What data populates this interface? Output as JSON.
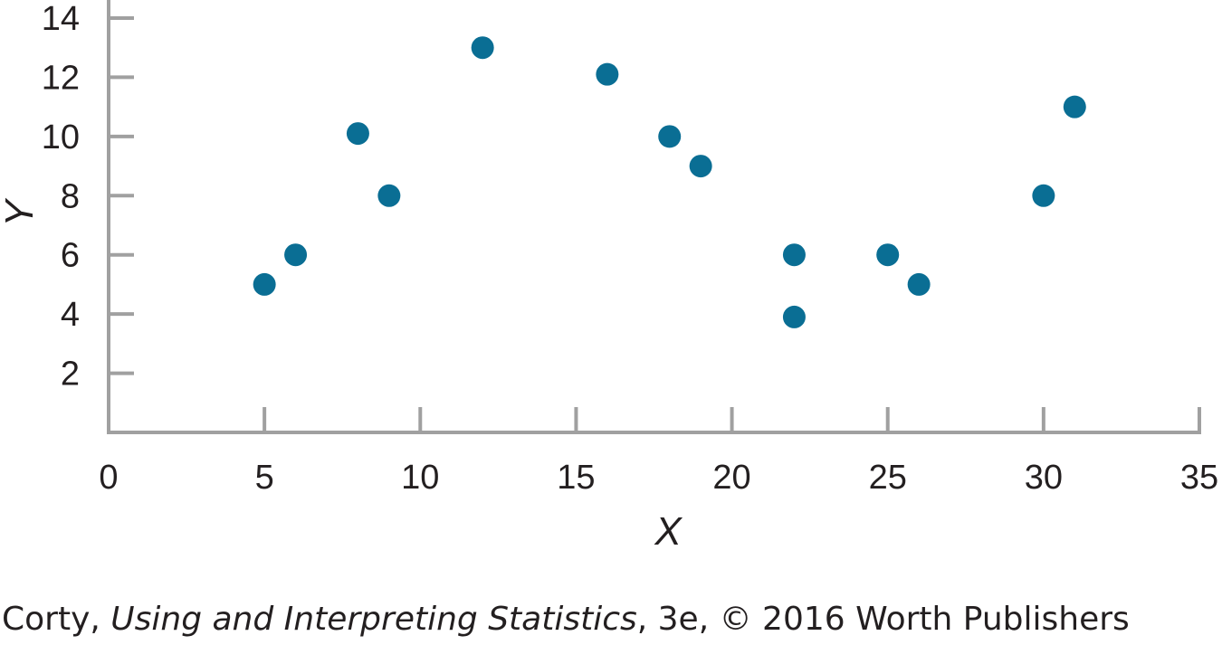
{
  "chart_data": {
    "type": "scatter",
    "title": "",
    "xlabel": "X",
    "ylabel": "Y",
    "xlim": [
      0,
      35
    ],
    "ylim": [
      0,
      14
    ],
    "x_ticks": [
      0,
      5,
      10,
      15,
      20,
      25,
      30,
      35
    ],
    "y_ticks": [
      2,
      4,
      6,
      8,
      10,
      12,
      14
    ],
    "grid": false,
    "legend": "none",
    "points": [
      {
        "x": 5,
        "y": 5
      },
      {
        "x": 6,
        "y": 6
      },
      {
        "x": 8,
        "y": 10.1
      },
      {
        "x": 9,
        "y": 8
      },
      {
        "x": 12,
        "y": 13
      },
      {
        "x": 16,
        "y": 12.1
      },
      {
        "x": 18,
        "y": 10
      },
      {
        "x": 19,
        "y": 9
      },
      {
        "x": 22,
        "y": 6
      },
      {
        "x": 22,
        "y": 3.9
      },
      {
        "x": 25,
        "y": 6
      },
      {
        "x": 26,
        "y": 5
      },
      {
        "x": 30,
        "y": 8
      },
      {
        "x": 31,
        "y": 11
      }
    ],
    "colors": {
      "point": "#0a6e94",
      "axis": "#a0a0a0",
      "text": "#231f20"
    }
  },
  "credit": {
    "author": "Corty,",
    "book_title": "Using and Interpreting Statistics",
    "rest": ", 3e, © 2016 Worth Publishers"
  }
}
